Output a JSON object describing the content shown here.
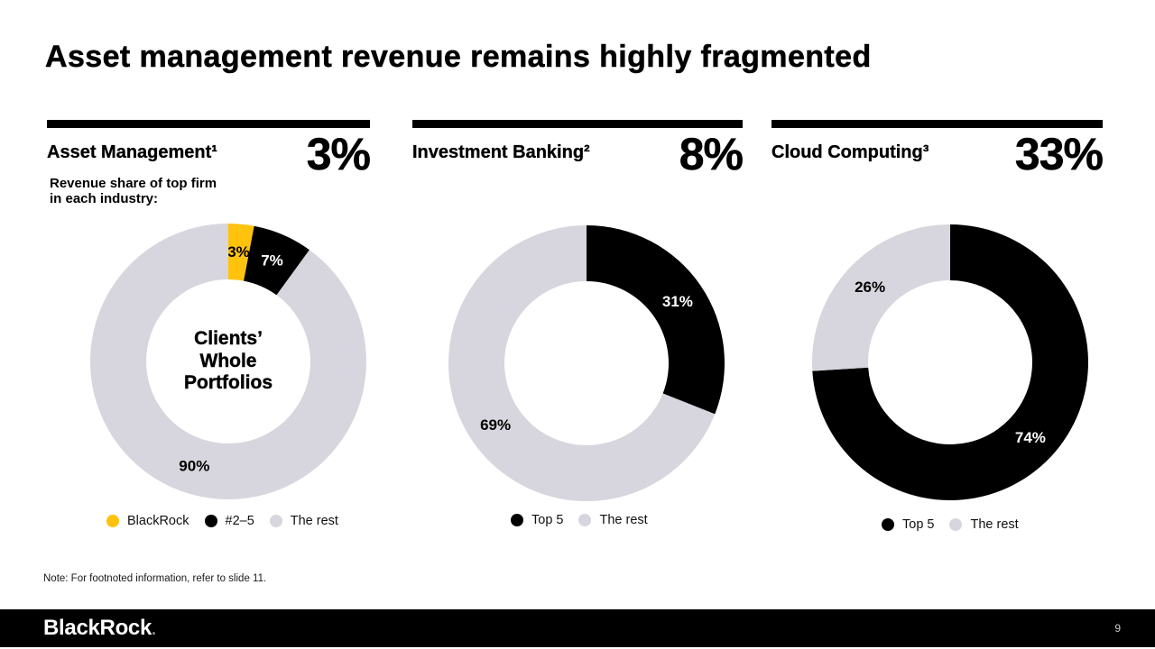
{
  "slide": {
    "title": "Asset management revenue remains highly fragmented",
    "note": "Note: For footnoted information, refer to slide 11.",
    "page_number": "9",
    "logo_text": "BlackRock",
    "logo_period": "."
  },
  "colors": {
    "brand_yellow": "#FFC30E",
    "black": "#000000",
    "light_gray": "#D7D5DD"
  },
  "panels": [
    {
      "title": "Asset Management¹",
      "big_value": "3%",
      "subtitle": "Revenue share of top firm in each industry:",
      "legend": [
        {
          "label": "BlackRock",
          "color": "#FFC30E"
        },
        {
          "label": "#2–5",
          "color": "#000000"
        },
        {
          "label": "The rest",
          "color": "#D7D5DD"
        }
      ]
    },
    {
      "title": "Investment Banking²",
      "big_value": "8%",
      "legend": [
        {
          "label": "Top 5",
          "color": "#000000"
        },
        {
          "label": "The rest",
          "color": "#D7D5DD"
        }
      ]
    },
    {
      "title": "Cloud Computing³",
      "big_value": "33%",
      "legend": [
        {
          "label": "Top 5",
          "color": "#000000"
        },
        {
          "label": "The rest",
          "color": "#D7D5DD"
        }
      ]
    }
  ],
  "chart_data": [
    {
      "type": "pie",
      "donut": true,
      "title": "Asset Management¹",
      "start_angle_deg": 0,
      "direction": "clockwise",
      "slices": [
        {
          "label": "BlackRock",
          "value": 3,
          "color": "#FFC30E",
          "label_color": "#000000"
        },
        {
          "label": "#2–5",
          "value": 7,
          "color": "#000000",
          "label_color": "#FFFFFF"
        },
        {
          "label": "The rest",
          "value": 90,
          "color": "#D7D5DD",
          "label_color": "#000000"
        }
      ],
      "center_text": [
        "Clients’",
        "Whole",
        "Portfolios"
      ]
    },
    {
      "type": "pie",
      "donut": true,
      "title": "Investment Banking²",
      "start_angle_deg": 0,
      "direction": "clockwise",
      "slices": [
        {
          "label": "Top 5",
          "value": 31,
          "color": "#000000",
          "label_color": "#FFFFFF"
        },
        {
          "label": "The rest",
          "value": 69,
          "color": "#D7D5DD",
          "label_color": "#000000"
        }
      ]
    },
    {
      "type": "pie",
      "donut": true,
      "title": "Cloud Computing³",
      "start_angle_deg": 0,
      "direction": "clockwise",
      "slices": [
        {
          "label": "Top 5",
          "value": 74,
          "color": "#000000",
          "label_color": "#FFFFFF"
        },
        {
          "label": "The rest",
          "value": 26,
          "color": "#D7D5DD",
          "label_color": "#000000"
        }
      ]
    }
  ]
}
